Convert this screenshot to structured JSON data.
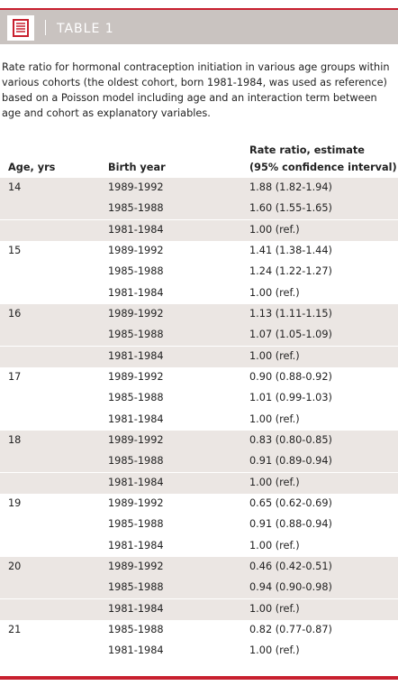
{
  "header": {
    "title": "TABLE 1",
    "icon": "document-icon",
    "accent_color": "#c8202f",
    "band_color": "#c9c3c0"
  },
  "caption": "Rate ratio for hormonal contraception initiation in various age groups within various cohorts (the oldest cohort, born 1981-1984, was used as reference) based on a Poisson model including age and an interaction term between age and cohort as explanatory variables.",
  "columns": {
    "age": "Age, yrs",
    "cohort": "Birth year",
    "rr_line1": "Rate ratio, estimate",
    "rr_line2": "(95% confidence interval)"
  },
  "groups": [
    {
      "age": "14",
      "rows": [
        {
          "cohort": "1989-1992",
          "rr": "1.88 (1.82-1.94)"
        },
        {
          "cohort": "1985-1988",
          "rr": "1.60 (1.55-1.65)"
        },
        {
          "cohort": "1981-1984",
          "rr": "1.00 (ref.)"
        }
      ]
    },
    {
      "age": "15",
      "rows": [
        {
          "cohort": "1989-1992",
          "rr": "1.41 (1.38-1.44)"
        },
        {
          "cohort": "1985-1988",
          "rr": "1.24 (1.22-1.27)"
        },
        {
          "cohort": "1981-1984",
          "rr": "1.00 (ref.)"
        }
      ]
    },
    {
      "age": "16",
      "rows": [
        {
          "cohort": "1989-1992",
          "rr": "1.13 (1.11-1.15)"
        },
        {
          "cohort": "1985-1988",
          "rr": "1.07 (1.05-1.09)"
        },
        {
          "cohort": "1981-1984",
          "rr": "1.00 (ref.)"
        }
      ]
    },
    {
      "age": "17",
      "rows": [
        {
          "cohort": "1989-1992",
          "rr": "0.90 (0.88-0.92)"
        },
        {
          "cohort": "1985-1988",
          "rr": "1.01 (0.99-1.03)"
        },
        {
          "cohort": "1981-1984",
          "rr": "1.00 (ref.)"
        }
      ]
    },
    {
      "age": "18",
      "rows": [
        {
          "cohort": "1989-1992",
          "rr": "0.83 (0.80-0.85)"
        },
        {
          "cohort": "1985-1988",
          "rr": "0.91 (0.89-0.94)"
        },
        {
          "cohort": "1981-1984",
          "rr": "1.00 (ref.)"
        }
      ]
    },
    {
      "age": "19",
      "rows": [
        {
          "cohort": "1989-1992",
          "rr": "0.65 (0.62-0.69)"
        },
        {
          "cohort": "1985-1988",
          "rr": "0.91 (0.88-0.94)"
        },
        {
          "cohort": "1981-1984",
          "rr": "1.00 (ref.)"
        }
      ]
    },
    {
      "age": "20",
      "rows": [
        {
          "cohort": "1989-1992",
          "rr": "0.46 (0.42-0.51)"
        },
        {
          "cohort": "1985-1988",
          "rr": "0.94 (0.90-0.98)"
        },
        {
          "cohort": "1981-1984",
          "rr": "1.00 (ref.)"
        }
      ]
    },
    {
      "age": "21",
      "rows": [
        {
          "cohort": "1985-1988",
          "rr": "0.82 (0.77-0.87)"
        },
        {
          "cohort": "1981-1984",
          "rr": "1.00 (ref.)"
        }
      ]
    }
  ]
}
